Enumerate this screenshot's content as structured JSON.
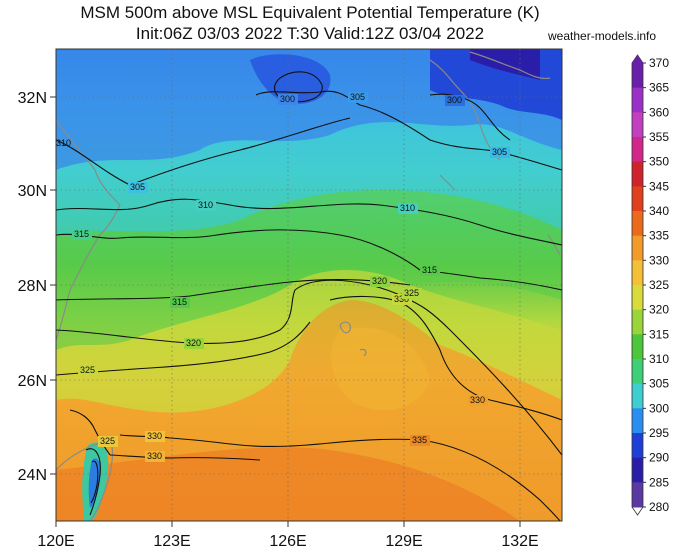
{
  "header": {
    "title_line1": "MSM 500m above MSL Equivalent Potential Temperature (K)",
    "title_line2": "Init:06Z 03/03 2022  T:30 Valid:12Z 03/04 2022",
    "credit": "weather-models.info"
  },
  "axes": {
    "lat_labels": [
      "32N",
      "30N",
      "28N",
      "26N",
      "24N"
    ],
    "lon_labels": [
      "120E",
      "123E",
      "126E",
      "129E",
      "132E"
    ]
  },
  "colorbar": {
    "levels": [
      "370",
      "365",
      "360",
      "355",
      "350",
      "345",
      "340",
      "335",
      "330",
      "325",
      "320",
      "315",
      "310",
      "305",
      "300",
      "295",
      "290",
      "285",
      "280"
    ],
    "colors": [
      "#6a1fa8",
      "#9b30c8",
      "#c040c0",
      "#d2278a",
      "#d0222a",
      "#e0401c",
      "#ec6a1c",
      "#f29a2a",
      "#f4c03a",
      "#d8dc3a",
      "#98d43a",
      "#4cc63a",
      "#3ed078",
      "#3ecdd0",
      "#2a8ef0",
      "#1e3ed8",
      "#2a1ea8",
      "#5a3aa0",
      "#ffffff"
    ]
  },
  "contour_labels": [
    {
      "id": "c300a",
      "text": "300"
    },
    {
      "id": "c305a",
      "text": "305"
    },
    {
      "id": "c300b",
      "text": "300"
    },
    {
      "id": "c310a",
      "text": "310"
    },
    {
      "id": "c305b",
      "text": "305"
    },
    {
      "id": "c305c",
      "text": "305"
    },
    {
      "id": "c310b",
      "text": "310"
    },
    {
      "id": "c310c",
      "text": "310"
    },
    {
      "id": "c315a",
      "text": "315"
    },
    {
      "id": "c315b",
      "text": "315"
    },
    {
      "id": "c320a",
      "text": "320"
    },
    {
      "id": "c315c",
      "text": "315"
    },
    {
      "id": "c330a",
      "text": "330"
    },
    {
      "id": "c325a",
      "text": "325"
    },
    {
      "id": "c320b",
      "text": "320"
    },
    {
      "id": "c325b",
      "text": "325"
    },
    {
      "id": "c330b",
      "text": "330"
    },
    {
      "id": "c325c",
      "text": "325"
    },
    {
      "id": "c330c",
      "text": "330"
    },
    {
      "id": "c330d",
      "text": "330"
    },
    {
      "id": "c335a",
      "text": "335"
    }
  ]
}
